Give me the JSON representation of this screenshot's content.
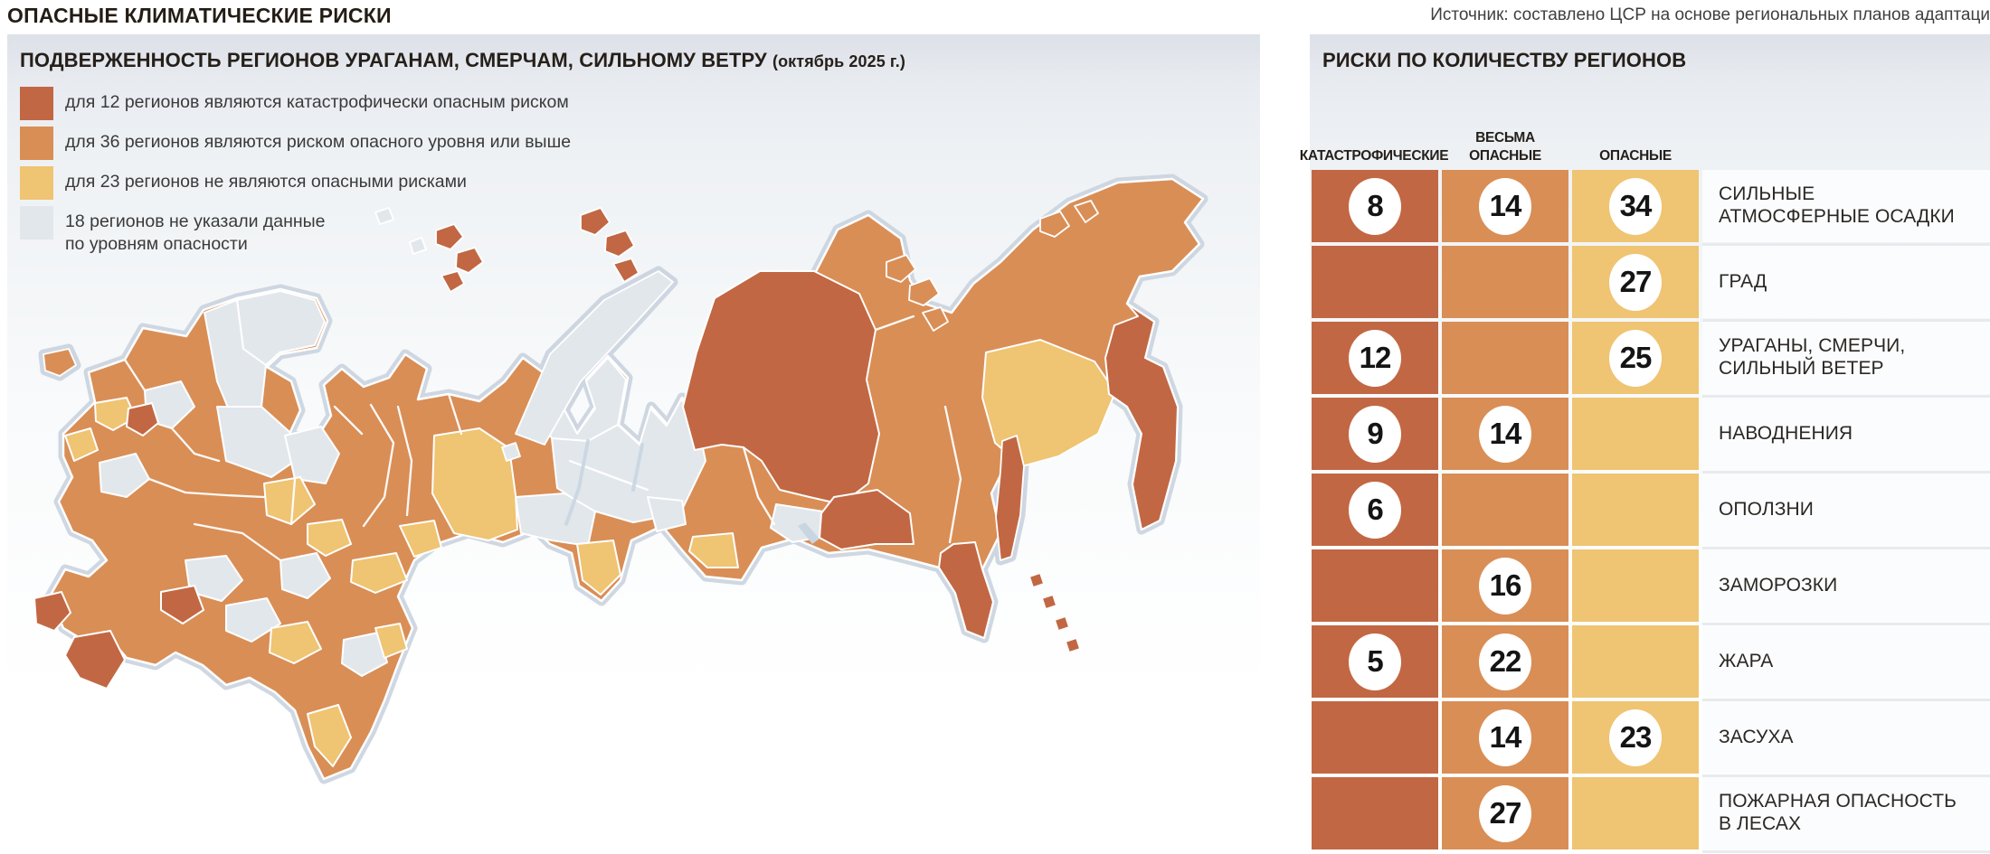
{
  "page": {
    "title": "ОПАСНЫЕ КЛИМАТИЧЕСКИЕ РИСКИ",
    "source": "Источник: составлено ЦСР на основе региональных планов адаптаци"
  },
  "palette": {
    "catastrophic": "#C26743",
    "very_dangerous": "#D98E56",
    "dangerous": "#EFC472",
    "no_data": "#E2E7EC"
  },
  "map_panel": {
    "title": "ПОДВЕРЖЕННОСТЬ РЕГИОНОВ УРАГАНАМ, СМЕРЧАМ, СИЛЬНОМУ ВЕТРУ ",
    "title_suffix": "(октябрь 2025 г.)",
    "legend": [
      {
        "color": "#C26743",
        "label": "для 12 регионов являются катастрофически опасным риском"
      },
      {
        "color": "#D98E56",
        "label": "для 36 регионов являются риском опасного уровня или выше"
      },
      {
        "color": "#EFC472",
        "label": "для 23 регионов не являются опасными рисками"
      },
      {
        "color": "#E2E7EC",
        "label": "18 регионов не указали данные\nпо уровням опасности"
      }
    ]
  },
  "risk_panel": {
    "title": "РИСКИ ПО КОЛИЧЕСТВУ РЕГИОНОВ",
    "columns": [
      "КАТАСТРОФИЧЕСКИЕ",
      "ВЕСЬМА\nОПАСНЫЕ",
      "ОПАСНЫЕ"
    ],
    "rows": [
      {
        "label": "СИЛЬНЫЕ\nАТМОСФЕРНЫЕ ОСАДКИ",
        "values": [
          8,
          14,
          34
        ]
      },
      {
        "label": "ГРАД",
        "values": [
          null,
          null,
          27
        ]
      },
      {
        "label": "УРАГАНЫ, СМЕРЧИ,\nСИЛЬНЫЙ ВЕТЕР",
        "values": [
          12,
          null,
          25
        ]
      },
      {
        "label": "НАВОДНЕНИЯ",
        "values": [
          9,
          14,
          null
        ]
      },
      {
        "label": "ОПОЛЗНИ",
        "values": [
          6,
          null,
          null
        ]
      },
      {
        "label": "ЗАМОРОЗКИ",
        "values": [
          null,
          16,
          null
        ]
      },
      {
        "label": "ЖАРА",
        "values": [
          5,
          22,
          null
        ]
      },
      {
        "label": "ЗАСУХА",
        "values": [
          null,
          14,
          23
        ]
      },
      {
        "label": "ПОЖАРНАЯ ОПАСНОСТЬ\nВ ЛЕСАХ",
        "values": [
          null,
          27,
          null
        ]
      }
    ]
  },
  "chart_data": [
    {
      "type": "choropleth-map",
      "title": "ПОДВЕРЖЕННОСТЬ РЕГИОНОВ УРАГАНАМ, СМЕРЧАМ, СИЛЬНОМУ ВЕТРУ (октябрь 2025 г.)",
      "geography": "Россия, субъекты РФ",
      "categories": [
        "являются катастрофически опасным риском",
        "являются риском опасного уровня или выше",
        "не являются опасными рисками",
        "не указали данные по уровням опасности"
      ],
      "values": [
        12,
        36,
        23,
        18
      ],
      "unit": "регионов",
      "colors": [
        "#C26743",
        "#D98E56",
        "#EFC472",
        "#E2E7EC"
      ],
      "legend_position": "top-left"
    },
    {
      "type": "table",
      "title": "РИСКИ ПО КОЛИЧЕСТВУ РЕГИОНОВ",
      "columns": [
        "КАТАСТРОФИЧЕСКИЕ",
        "ВЕСЬМА ОПАСНЫЕ",
        "ОПАСНЫЕ"
      ],
      "rows": [
        [
          "СИЛЬНЫЕ АТМОСФЕРНЫЕ ОСАДКИ",
          8,
          14,
          34
        ],
        [
          "ГРАД",
          null,
          null,
          27
        ],
        [
          "УРАГАНЫ, СМЕРЧИ, СИЛЬНЫЙ ВЕТЕР",
          12,
          null,
          25
        ],
        [
          "НАВОДНЕНИЯ",
          9,
          14,
          null
        ],
        [
          "ОПОЛЗНИ",
          6,
          null,
          null
        ],
        [
          "ЗАМОРОЗКИ",
          null,
          16,
          null
        ],
        [
          "ЖАРА",
          5,
          22,
          null
        ],
        [
          "ЗАСУХА",
          null,
          14,
          23
        ],
        [
          "ПОЖАРНАЯ ОПАСНОСТЬ В ЛЕСАХ",
          null,
          27,
          null
        ]
      ]
    }
  ]
}
